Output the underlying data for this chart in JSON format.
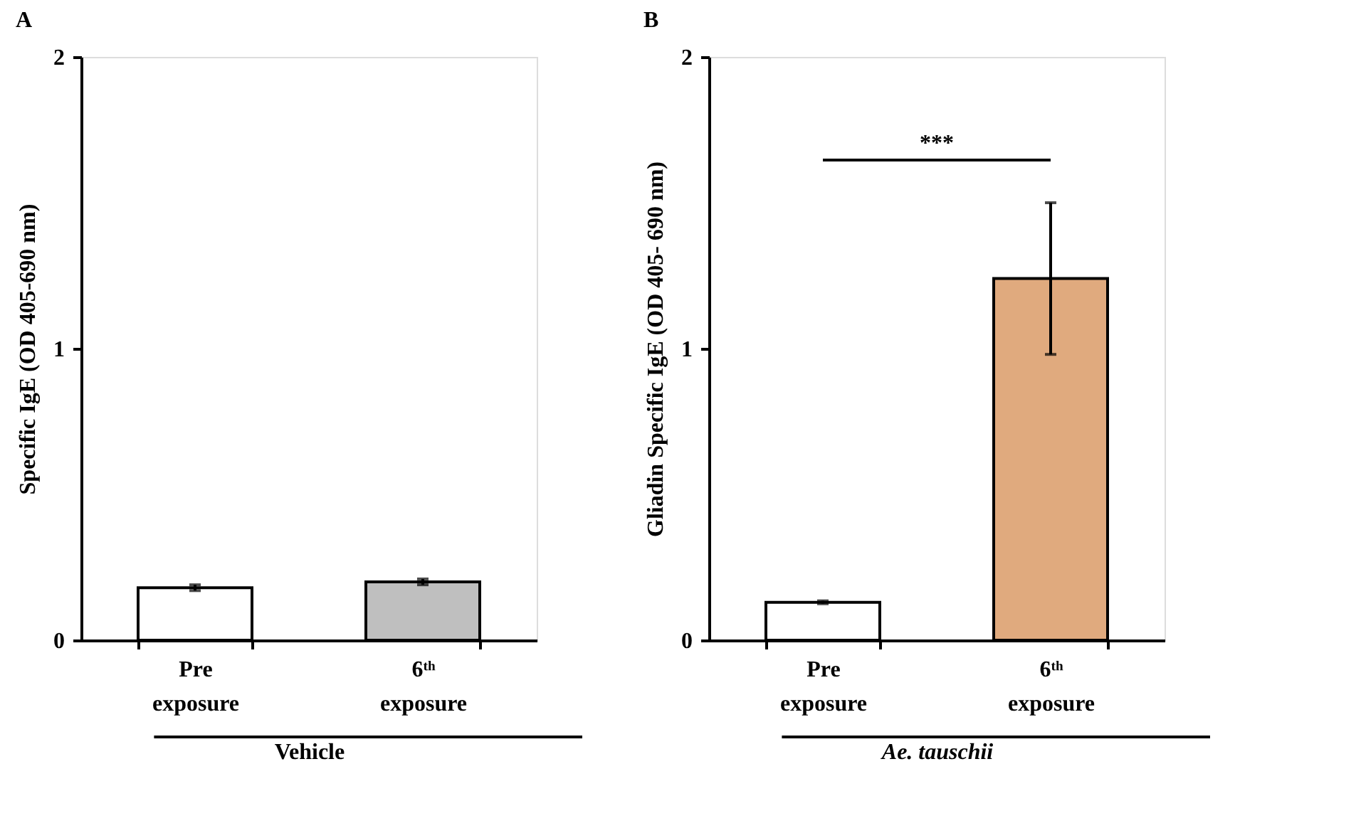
{
  "chart_data": [
    {
      "type": "bar",
      "title": "A",
      "ylabel": "Specific IgE (OD 405-690 nm)",
      "xlabel": "Vehicle",
      "categories": [
        "Pre exposure",
        "6ᵗʰ exposure"
      ],
      "values": [
        0.18,
        0.2
      ],
      "errors": [
        0.01,
        0.01
      ],
      "colors": [
        "#ffffff",
        "#bfbfbf"
      ],
      "ylim": [
        0,
        2
      ],
      "yticks": [
        0,
        1,
        2
      ],
      "grid": false
    },
    {
      "type": "bar",
      "title": "B",
      "ylabel": "Gliadin Specific IgE (OD 405- 690 nm)",
      "xlabel": "Ae. tauschii",
      "categories": [
        "Pre exposure",
        "6ᵗʰ exposure"
      ],
      "values": [
        0.13,
        1.24
      ],
      "errors": [
        0.005,
        0.26
      ],
      "colors": [
        "#ffffff",
        "#e0aa7e"
      ],
      "ylim": [
        0,
        2
      ],
      "yticks": [
        0,
        1,
        2
      ],
      "grid": false,
      "annotations": [
        "***"
      ]
    }
  ]
}
